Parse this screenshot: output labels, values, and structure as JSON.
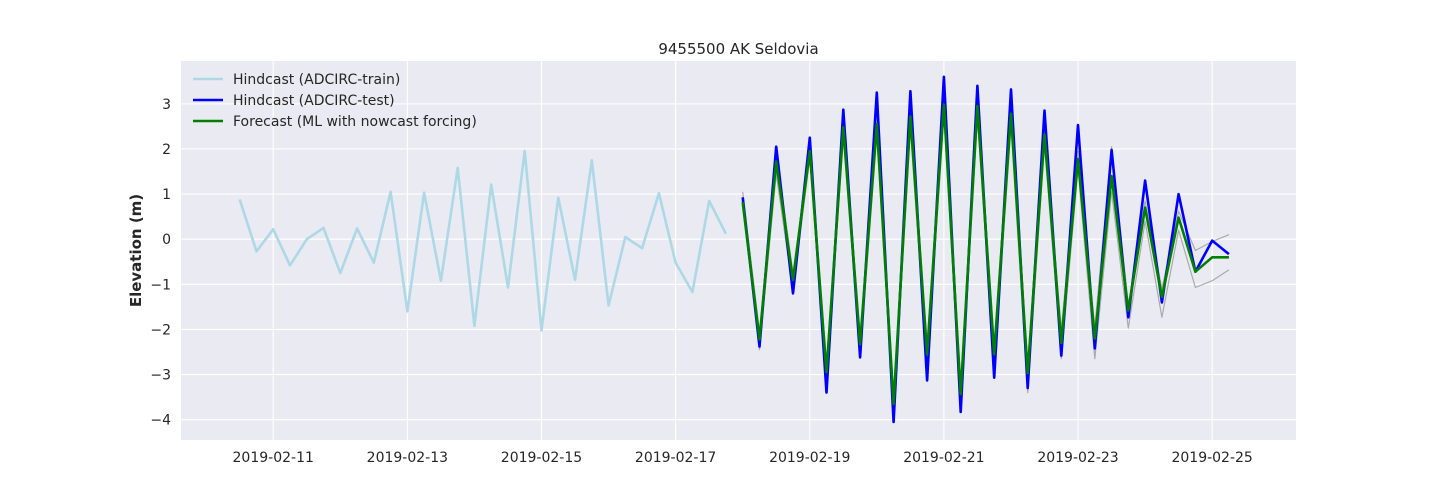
{
  "chart_data": {
    "type": "line",
    "title": "9455500 AK Seldovia",
    "xlabel": "",
    "ylabel": "Elevation (m)",
    "x_type": "date",
    "xlim": [
      "2019-02-09T15:00",
      "2019-02-26T06:00"
    ],
    "ylim": [
      -4.45,
      3.95
    ],
    "x_ticks": [
      "2019-02-11",
      "2019-02-13",
      "2019-02-15",
      "2019-02-17",
      "2019-02-19",
      "2019-02-21",
      "2019-02-23",
      "2019-02-25"
    ],
    "y_ticks": [
      -4,
      -3,
      -2,
      -1,
      0,
      1,
      2,
      3
    ],
    "grid": true,
    "legend_position": "top-left",
    "series": [
      {
        "name": "Hindcast (ADCIRC-train)",
        "color": "#add8e6",
        "x": [
          "2019-02-10T12:00",
          "2019-02-10T18:00",
          "2019-02-11T00:00",
          "2019-02-11T06:00",
          "2019-02-11T12:00",
          "2019-02-11T18:00",
          "2019-02-12T00:00",
          "2019-02-12T06:00",
          "2019-02-12T12:00",
          "2019-02-12T18:00",
          "2019-02-13T00:00",
          "2019-02-13T06:00",
          "2019-02-13T12:00",
          "2019-02-13T18:00",
          "2019-02-14T00:00",
          "2019-02-14T06:00",
          "2019-02-14T12:00",
          "2019-02-14T18:00",
          "2019-02-15T00:00",
          "2019-02-15T06:00",
          "2019-02-15T12:00",
          "2019-02-15T18:00",
          "2019-02-16T00:00",
          "2019-02-16T06:00",
          "2019-02-16T12:00",
          "2019-02-16T18:00",
          "2019-02-17T00:00",
          "2019-02-17T06:00",
          "2019-02-17T12:00",
          "2019-02-17T18:00"
        ],
        "values": [
          0.88,
          -0.27,
          0.22,
          -0.58,
          0.0,
          0.25,
          -0.75,
          0.24,
          -0.52,
          1.05,
          -1.6,
          1.03,
          -0.92,
          1.58,
          -1.92,
          1.21,
          -1.07,
          1.96,
          -2.02,
          0.92,
          -0.9,
          1.75,
          -1.47,
          0.05,
          -0.2,
          1.02,
          -0.52,
          -1.17,
          0.85,
          0.12
        ]
      },
      {
        "name": "Hindcast (ADCIRC-test)",
        "color": "#0000ff",
        "x": [
          "2019-02-18T00:00",
          "2019-02-18T06:00",
          "2019-02-18T12:00",
          "2019-02-18T18:00",
          "2019-02-19T00:00",
          "2019-02-19T06:00",
          "2019-02-19T12:00",
          "2019-02-19T18:00",
          "2019-02-20T00:00",
          "2019-02-20T06:00",
          "2019-02-20T12:00",
          "2019-02-20T18:00",
          "2019-02-21T00:00",
          "2019-02-21T06:00",
          "2019-02-21T12:00",
          "2019-02-21T18:00",
          "2019-02-22T00:00",
          "2019-02-22T06:00",
          "2019-02-22T12:00",
          "2019-02-22T18:00",
          "2019-02-23T00:00",
          "2019-02-23T06:00",
          "2019-02-23T12:00",
          "2019-02-23T18:00",
          "2019-02-24T00:00",
          "2019-02-24T06:00",
          "2019-02-24T12:00",
          "2019-02-24T18:00",
          "2019-02-25T00:00",
          "2019-02-25T06:00"
        ],
        "values": [
          0.93,
          -2.38,
          2.05,
          -1.2,
          2.25,
          -3.4,
          2.87,
          -2.62,
          3.25,
          -4.05,
          3.28,
          -3.13,
          3.6,
          -3.83,
          3.4,
          -3.07,
          3.32,
          -3.3,
          2.85,
          -2.58,
          2.53,
          -2.42,
          1.98,
          -1.73,
          1.3,
          -1.4,
          1.0,
          -0.72,
          -0.03,
          -0.33
        ]
      },
      {
        "name": "Forecast (ML with nowcast forcing)",
        "color": "#008000",
        "x": [
          "2019-02-18T00:00",
          "2019-02-18T06:00",
          "2019-02-18T12:00",
          "2019-02-18T18:00",
          "2019-02-19T00:00",
          "2019-02-19T06:00",
          "2019-02-19T12:00",
          "2019-02-19T18:00",
          "2019-02-20T00:00",
          "2019-02-20T06:00",
          "2019-02-20T12:00",
          "2019-02-20T18:00",
          "2019-02-21T00:00",
          "2019-02-21T06:00",
          "2019-02-21T12:00",
          "2019-02-21T18:00",
          "2019-02-22T00:00",
          "2019-02-22T06:00",
          "2019-02-22T12:00",
          "2019-02-22T18:00",
          "2019-02-23T00:00",
          "2019-02-23T06:00",
          "2019-02-23T12:00",
          "2019-02-23T18:00",
          "2019-02-24T00:00",
          "2019-02-24T06:00",
          "2019-02-24T12:00",
          "2019-02-24T18:00",
          "2019-02-25T00:00",
          "2019-02-25T06:00"
        ],
        "values": [
          0.82,
          -2.22,
          1.72,
          -0.9,
          1.95,
          -2.95,
          2.48,
          -2.33,
          2.55,
          -3.65,
          2.72,
          -2.55,
          2.98,
          -3.43,
          2.95,
          -2.55,
          2.78,
          -2.97,
          2.32,
          -2.3,
          1.78,
          -2.2,
          1.4,
          -1.58,
          0.7,
          -1.28,
          0.48,
          -0.72,
          -0.4,
          -0.4
        ]
      },
      {
        "color": "#aaaaaa",
        "x": [
          "2019-02-18T00:00",
          "2019-02-18T06:00",
          "2019-02-18T12:00",
          "2019-02-18T18:00",
          "2019-02-19T00:00",
          "2019-02-19T06:00",
          "2019-02-19T12:00",
          "2019-02-19T18:00",
          "2019-02-20T00:00",
          "2019-02-20T06:00",
          "2019-02-20T12:00",
          "2019-02-20T18:00",
          "2019-02-21T00:00",
          "2019-02-21T06:00",
          "2019-02-21T12:00",
          "2019-02-21T18:00",
          "2019-02-22T00:00",
          "2019-02-22T06:00",
          "2019-02-22T12:00",
          "2019-02-22T18:00",
          "2019-02-23T00:00",
          "2019-02-23T06:00",
          "2019-02-23T12:00",
          "2019-02-23T18:00",
          "2019-02-24T00:00",
          "2019-02-24T06:00",
          "2019-02-24T12:00",
          "2019-02-24T18:00",
          "2019-02-25T00:00",
          "2019-02-25T06:00"
        ],
        "values": [
          1.05,
          -2.05,
          1.95,
          -0.75,
          2.05,
          -2.75,
          2.7,
          -2.1,
          2.75,
          -3.45,
          2.95,
          -2.3,
          3.2,
          -3.2,
          3.15,
          -2.3,
          3.0,
          -2.75,
          2.5,
          -2.0,
          1.95,
          -1.95,
          2.05,
          -1.45,
          0.85,
          -1.1,
          0.62,
          -0.25,
          -0.05,
          0.1
        ]
      },
      {
        "color": "#aaaaaa",
        "x": [
          "2019-02-18T00:00",
          "2019-02-18T06:00",
          "2019-02-18T12:00",
          "2019-02-18T18:00",
          "2019-02-19T00:00",
          "2019-02-19T06:00",
          "2019-02-19T12:00",
          "2019-02-19T18:00",
          "2019-02-20T00:00",
          "2019-02-20T06:00",
          "2019-02-20T12:00",
          "2019-02-20T18:00",
          "2019-02-21T00:00",
          "2019-02-21T06:00",
          "2019-02-21T12:00",
          "2019-02-21T18:00",
          "2019-02-22T00:00",
          "2019-02-22T06:00",
          "2019-02-22T12:00",
          "2019-02-22T18:00",
          "2019-02-23T00:00",
          "2019-02-23T06:00",
          "2019-02-23T12:00",
          "2019-02-23T18:00",
          "2019-02-24T00:00",
          "2019-02-24T06:00",
          "2019-02-24T12:00",
          "2019-02-24T18:00",
          "2019-02-25T00:00",
          "2019-02-25T06:00"
        ],
        "values": [
          0.7,
          -2.45,
          1.45,
          -1.15,
          1.8,
          -3.2,
          2.25,
          -2.6,
          2.3,
          -3.9,
          2.45,
          -2.9,
          2.75,
          -3.75,
          2.7,
          -2.9,
          2.5,
          -3.4,
          2.1,
          -2.65,
          1.55,
          -2.65,
          1.05,
          -1.97,
          0.4,
          -1.73,
          0.2,
          -1.07,
          -0.92,
          -0.68
        ]
      }
    ]
  }
}
